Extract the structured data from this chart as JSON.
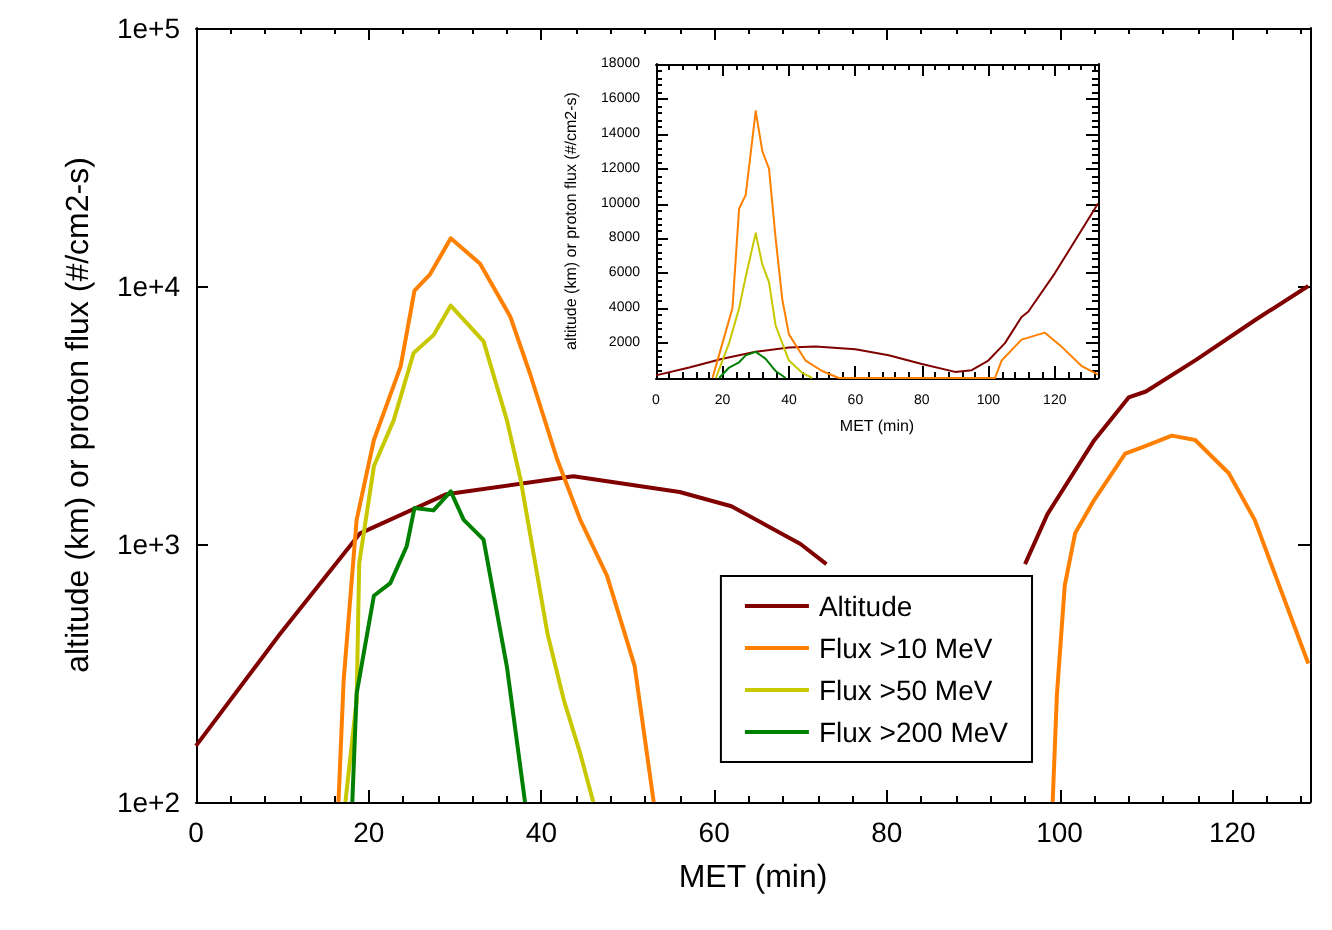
{
  "chart_data": [
    {
      "type": "line",
      "xlabel": "MET (min)",
      "ylabel": "altitude (km) or proton flux (#/cm2-s)",
      "log": true,
      "xlim": [
        0,
        129
      ],
      "xticks": [
        0,
        20,
        40,
        60,
        80,
        100,
        120
      ],
      "ylim": [
        100,
        100000
      ],
      "yticks": [
        {
          "value": 100,
          "label": "1e+2"
        },
        {
          "value": 1000,
          "label": "1e+3"
        },
        {
          "value": 10000,
          "label": "1e+4"
        },
        {
          "value": 100000,
          "label": "1e+5"
        }
      ],
      "legend": "bottom right",
      "grid": false,
      "series": [
        {
          "name": "Altitude",
          "color": "#800000",
          "x": [
            0,
            9.7,
            19,
            29,
            43.7,
            56,
            62,
            70,
            73,
            80,
            90,
            96,
            98.6,
            104,
            108,
            110,
            115.8,
            122.7,
            128.8
          ],
          "values": [
            165,
            447,
            1100,
            1560,
            1830,
            1590,
            1400,
            1000,
            836,
            null,
            null,
            836,
            1306,
            2520,
            3700,
            3900,
            5170,
            7400,
            10000
          ]
        },
        {
          "name": "Flux >10 MeV",
          "color": "#ff8000",
          "x": [
            16.5,
            17.1,
            18.6,
            20.6,
            23.7,
            25.3,
            27.1,
            29.5,
            32.9,
            36.4,
            38.7,
            41.8,
            44.5,
            47.6,
            50.8,
            53,
            75,
            99.2,
            99.7,
            100.6,
            101.8,
            104,
            107.6,
            110,
            113,
            115.7,
            119.6,
            122.6,
            128.8
          ],
          "values": [
            100,
            297,
            1240,
            2530,
            4880,
            9600,
            11100,
            15300,
            12200,
            7600,
            4550,
            2140,
            1240,
            752,
            336,
            100,
            null,
            100,
            263,
            690,
            1100,
            1480,
            2240,
            2400,
            2630,
            2530,
            1880,
            1240,
            344
          ]
        },
        {
          "name": "Flux >50 MeV",
          "color": "#c8c800",
          "x": [
            17.3,
            18.6,
            18.9,
            20.6,
            22.9,
            25.2,
            27.5,
            29.5,
            33.3,
            36,
            37.6,
            40.7,
            42.6,
            44.5,
            46
          ],
          "values": [
            100,
            248,
            842,
            2000,
            3020,
            5500,
            6450,
            8400,
            6100,
            3020,
            1770,
            450,
            248,
            154,
            100
          ]
        },
        {
          "name": "Flux >200 MeV",
          "color": "#008000",
          "x": [
            18.1,
            18.6,
            20.6,
            22.5,
            24.4,
            25.3,
            27.5,
            29.5,
            31,
            33.3,
            36,
            38.1
          ],
          "values": [
            100,
            263,
            630,
            705,
            980,
            1380,
            1350,
            1600,
            1240,
            1040,
            335,
            100
          ]
        }
      ]
    },
    {
      "type": "line",
      "xlabel": "MET (min)",
      "ylabel": "altitude (km) or proton flux (#/cm2-s)",
      "xlim": [
        0,
        133
      ],
      "xticks": [
        0,
        20,
        40,
        60,
        80,
        100,
        120
      ],
      "ylim": [
        0,
        18000
      ],
      "yticks": [
        {
          "value": 0,
          "label": null
        },
        2000,
        4000,
        6000,
        8000,
        10000,
        12000,
        14000,
        16000,
        18000
      ],
      "grid": false,
      "series": [
        {
          "color": "#800000",
          "x": [
            0,
            10,
            20,
            30,
            40,
            48,
            60,
            70,
            80,
            90,
            95,
            100,
            105,
            110,
            112,
            120,
            133
          ],
          "values": [
            150,
            600,
            1100,
            1500,
            1750,
            1800,
            1650,
            1300,
            800,
            350,
            450,
            1000,
            2000,
            3500,
            3800,
            6000,
            10000
          ]
        },
        {
          "color": "#ff8000",
          "x": [
            17,
            20,
            23,
            25,
            27,
            30,
            32,
            34,
            36,
            38,
            40,
            45,
            50,
            55,
            102,
            104,
            110,
            117,
            122,
            128,
            133
          ],
          "values": [
            0,
            2000,
            4000,
            9700,
            10500,
            15300,
            13000,
            12000,
            8000,
            4500,
            2500,
            1000,
            400,
            0,
            0,
            1000,
            2200,
            2600,
            1800,
            700,
            200
          ]
        },
        {
          "color": "#c8c800",
          "x": [
            18,
            22,
            25,
            27,
            30,
            32,
            34,
            36,
            40,
            44,
            47
          ],
          "values": [
            0,
            2000,
            4000,
            5800,
            8300,
            6500,
            5500,
            3000,
            1000,
            300,
            0
          ]
        },
        {
          "color": "#008000",
          "x": [
            19,
            22,
            25,
            27,
            30,
            33,
            36,
            39
          ],
          "values": [
            0,
            600,
            900,
            1300,
            1500,
            1100,
            400,
            0
          ]
        }
      ]
    }
  ]
}
